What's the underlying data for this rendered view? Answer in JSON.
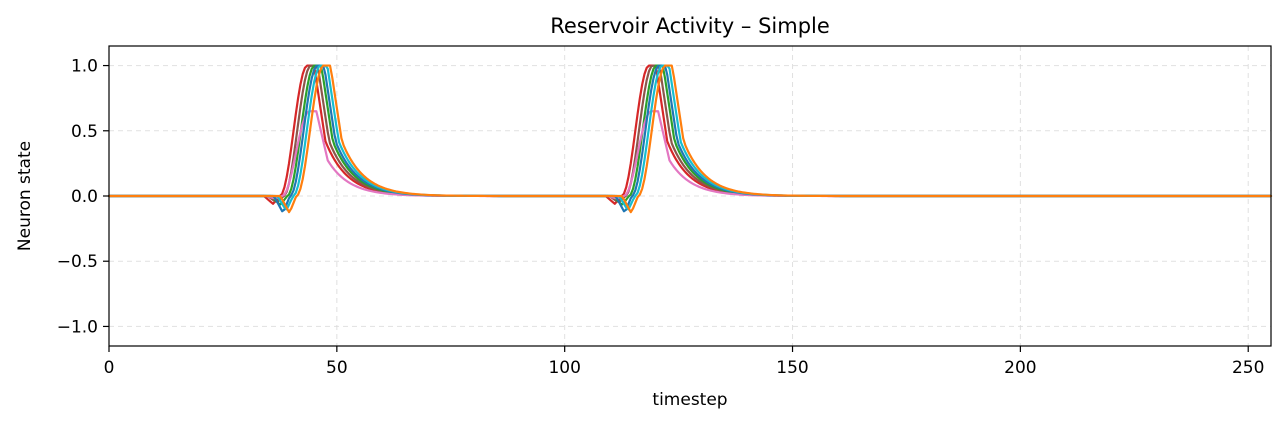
{
  "chart_data": {
    "type": "line",
    "title": "Reservoir Activity – Simple",
    "xlabel": "timestep",
    "ylabel": "Neuron state",
    "xlim": [
      0,
      255
    ],
    "ylim": [
      -1.15,
      1.15
    ],
    "xticks": [
      0,
      50,
      100,
      150,
      200,
      250
    ],
    "xtick_labels": [
      "0",
      "50",
      "100",
      "150",
      "200",
      "250"
    ],
    "yticks": [
      -1.0,
      -0.5,
      0.0,
      0.5,
      1.0
    ],
    "ytick_labels": [
      "−1.0",
      "−0.5",
      "0.0",
      "0.5",
      "1.0"
    ],
    "grid": true,
    "legend": "none",
    "pulse_onsets": [
      34,
      109
    ],
    "series": [
      {
        "color": "#d62728",
        "shift": 0,
        "peak": 1.0,
        "dip": -0.06
      },
      {
        "color": "#8c564b",
        "shift": 0.8,
        "peak": 1.0,
        "dip": -0.05
      },
      {
        "color": "#2ca02c",
        "shift": 1.6,
        "peak": 1.0,
        "dip": -0.07
      },
      {
        "color": "#e377c2",
        "shift": 0.5,
        "peak": 0.65,
        "dip": -0.02
      },
      {
        "color": "#1f77b4",
        "shift": 2.2,
        "peak": 1.0,
        "dip": -0.13
      },
      {
        "color": "#17becf",
        "shift": 2.9,
        "peak": 1.0,
        "dip": -0.11
      },
      {
        "color": "#ff7f0e",
        "shift": 3.6,
        "peak": 1.0,
        "dip": -0.13
      }
    ]
  }
}
